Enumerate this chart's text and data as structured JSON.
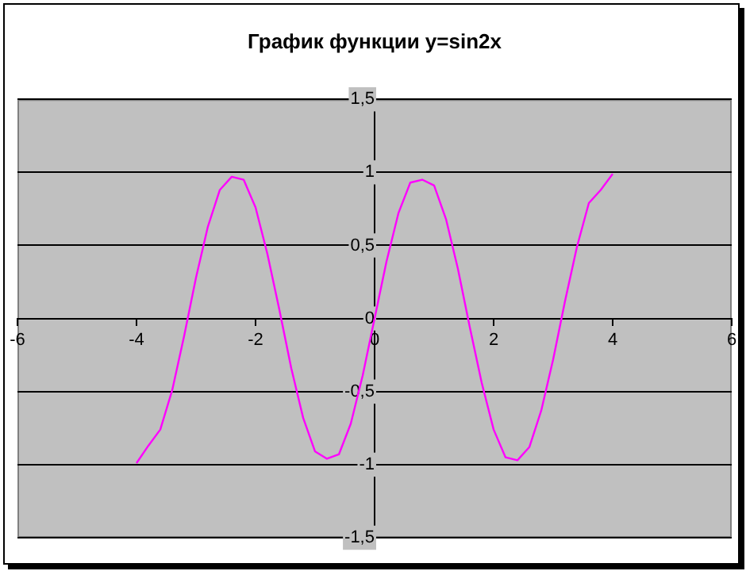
{
  "chart_data": {
    "type": "line",
    "title": "График функции y=sin2x",
    "x": [
      -4,
      -3.8,
      -3.6,
      -3.4,
      -3.2,
      -3,
      -2.8,
      -2.6,
      -2.4,
      -2.2,
      -2,
      -1.8,
      -1.6,
      -1.4,
      -1.2,
      -1,
      -0.8,
      -0.6,
      -0.4,
      -0.2,
      0,
      0.2,
      0.4,
      0.6,
      0.8,
      1,
      1.2,
      1.4,
      1.6,
      1.8,
      2,
      2.2,
      2.4,
      2.6,
      2.8,
      3,
      3.2,
      3.4,
      3.6,
      3.8,
      4
    ],
    "series": [
      {
        "color": "#ff00ff",
        "values": [
          -0.99,
          -0.87,
          -0.76,
          -0.49,
          -0.12,
          0.28,
          0.63,
          0.88,
          0.97,
          0.95,
          0.76,
          0.44,
          0.06,
          -0.34,
          -0.68,
          -0.91,
          -0.96,
          -0.93,
          -0.72,
          -0.39,
          0,
          0.39,
          0.72,
          0.93,
          0.95,
          0.91,
          0.68,
          0.34,
          -0.06,
          -0.44,
          -0.76,
          -0.95,
          -0.97,
          -0.88,
          -0.63,
          -0.28,
          0.12,
          0.49,
          0.79,
          0.88,
          0.99
        ]
      }
    ],
    "xlim": [
      -6,
      6
    ],
    "xticks": [
      -6,
      -4,
      -2,
      0,
      2,
      4,
      6
    ],
    "ylim": [
      -1.5,
      1.5
    ],
    "yticks": [
      {
        "value": -1.5,
        "label": "-1,5"
      },
      -1,
      {
        "value": -0.5,
        "label": "-0,5"
      },
      0,
      {
        "value": 0.5,
        "label": "0,5"
      },
      1,
      {
        "value": 1.5,
        "label": "1,5"
      }
    ],
    "grid": "y",
    "legend": false,
    "marker": "none",
    "line_style": "solid"
  }
}
